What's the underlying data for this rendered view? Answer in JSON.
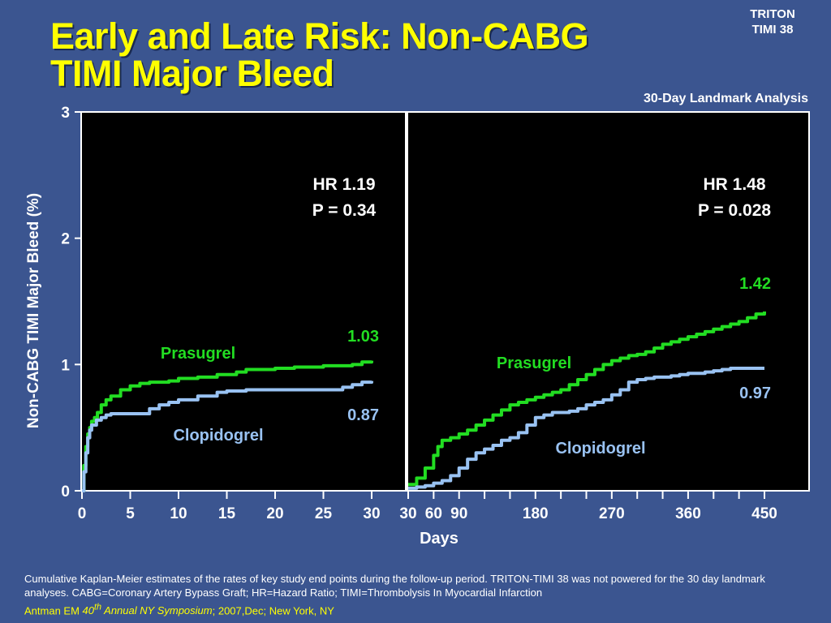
{
  "header": {
    "title_line1": "Early and Late Risk: Non-CABG",
    "title_line2": "TIMI Major Bleed",
    "brand_line1": "TRITON",
    "brand_line2": "TIMI 38",
    "landmark_label": "30-Day Landmark Analysis"
  },
  "chart_data": {
    "type": "line",
    "ylabel": "Non-CABG TIMI Major Bleed (%)",
    "xlabel": "Days",
    "ylim": [
      0,
      3
    ],
    "yticks": [
      0,
      1,
      2,
      3
    ],
    "background": "#000000",
    "grid": false,
    "colors": {
      "prasugrel": "#22dd22",
      "clopidogrel": "#99c2f2"
    },
    "panels": [
      {
        "name": "early",
        "xlim": [
          0,
          30
        ],
        "xticks": [
          0,
          5,
          10,
          15,
          20,
          25,
          30
        ],
        "hr_text": "HR 1.19",
        "p_text": "P = 0.34",
        "series": [
          {
            "name": "Prasugrel",
            "label_text": "Prasugrel",
            "end_value_text": "1.03",
            "x": [
              0,
              0.2,
              0.4,
              0.6,
              0.8,
              1,
              1.3,
              1.6,
              2,
              2.5,
              3,
              4,
              5,
              6,
              7,
              9,
              10,
              12,
              14,
              16,
              17,
              20,
              22,
              25,
              28,
              29,
              30
            ],
            "y": [
              0,
              0.2,
              0.35,
              0.45,
              0.5,
              0.55,
              0.58,
              0.62,
              0.68,
              0.72,
              0.75,
              0.8,
              0.83,
              0.85,
              0.86,
              0.87,
              0.89,
              0.9,
              0.92,
              0.94,
              0.96,
              0.97,
              0.98,
              0.99,
              1.0,
              1.02,
              1.03
            ]
          },
          {
            "name": "Clopidogrel",
            "label_text": "Clopidogrel",
            "end_value_text": "0.87",
            "x": [
              0,
              0.2,
              0.4,
              0.6,
              0.8,
              1,
              1.5,
              2,
              2.5,
              3,
              5,
              7,
              8,
              9,
              10,
              12,
              14,
              15,
              17,
              20,
              23,
              26,
              27,
              28,
              29,
              30
            ],
            "y": [
              0,
              0.15,
              0.3,
              0.42,
              0.48,
              0.52,
              0.56,
              0.58,
              0.6,
              0.61,
              0.61,
              0.65,
              0.68,
              0.7,
              0.72,
              0.75,
              0.78,
              0.79,
              0.8,
              0.8,
              0.8,
              0.8,
              0.82,
              0.84,
              0.86,
              0.87
            ]
          }
        ]
      },
      {
        "name": "late",
        "xlim": [
          30,
          450
        ],
        "xticks": [
          30,
          60,
          90,
          180,
          270,
          360,
          450
        ],
        "minor_xticks": [
          120,
          150,
          210,
          240,
          300,
          330,
          390,
          420
        ],
        "hr_text": "HR 1.48",
        "p_text": "P = 0.028",
        "series": [
          {
            "name": "Prasugrel",
            "label_text": "Prasugrel",
            "end_value_text": "1.42",
            "x": [
              30,
              40,
              50,
              60,
              65,
              70,
              80,
              90,
              100,
              110,
              120,
              130,
              140,
              150,
              160,
              170,
              180,
              190,
              200,
              210,
              220,
              230,
              240,
              250,
              260,
              270,
              280,
              290,
              300,
              310,
              320,
              330,
              340,
              350,
              360,
              370,
              380,
              390,
              400,
              410,
              420,
              430,
              440,
              450
            ],
            "y": [
              0.05,
              0.1,
              0.18,
              0.28,
              0.35,
              0.4,
              0.42,
              0.45,
              0.48,
              0.52,
              0.56,
              0.6,
              0.64,
              0.68,
              0.7,
              0.72,
              0.74,
              0.76,
              0.78,
              0.8,
              0.84,
              0.88,
              0.92,
              0.96,
              1.0,
              1.03,
              1.05,
              1.07,
              1.08,
              1.1,
              1.13,
              1.16,
              1.18,
              1.2,
              1.22,
              1.24,
              1.26,
              1.28,
              1.3,
              1.32,
              1.34,
              1.37,
              1.4,
              1.42
            ]
          },
          {
            "name": "Clopidogrel",
            "label_text": "Clopidogrel",
            "end_value_text": "0.97",
            "x": [
              30,
              40,
              50,
              60,
              70,
              80,
              90,
              100,
              110,
              120,
              130,
              140,
              150,
              160,
              170,
              180,
              190,
              200,
              210,
              220,
              230,
              240,
              250,
              260,
              270,
              280,
              290,
              300,
              310,
              320,
              330,
              340,
              350,
              360,
              370,
              380,
              390,
              400,
              410,
              420,
              430,
              440,
              450
            ],
            "y": [
              0.02,
              0.03,
              0.04,
              0.06,
              0.08,
              0.12,
              0.18,
              0.25,
              0.3,
              0.33,
              0.36,
              0.4,
              0.42,
              0.46,
              0.52,
              0.58,
              0.6,
              0.62,
              0.62,
              0.63,
              0.65,
              0.68,
              0.7,
              0.72,
              0.76,
              0.8,
              0.86,
              0.88,
              0.89,
              0.9,
              0.9,
              0.91,
              0.92,
              0.93,
              0.93,
              0.94,
              0.95,
              0.96,
              0.97,
              0.97,
              0.97,
              0.97,
              0.97
            ]
          }
        ]
      }
    ]
  },
  "footer": {
    "note": "Cumulative Kaplan-Meier estimates of the rates of key study end points during the follow-up period. TRITON-TIMI 38 was not powered for the 30 day landmark analyses. CABG=Coronary Artery Bypass Graft; HR=Hazard Ratio; TIMI=Thrombolysis In Myocardial Infarction",
    "citation_author": "Antman EM ",
    "citation_num": "40",
    "citation_sup": "th",
    "citation_event": " Annual NY Symposium",
    "citation_rest": "; 2007,Dec; New York, NY"
  }
}
